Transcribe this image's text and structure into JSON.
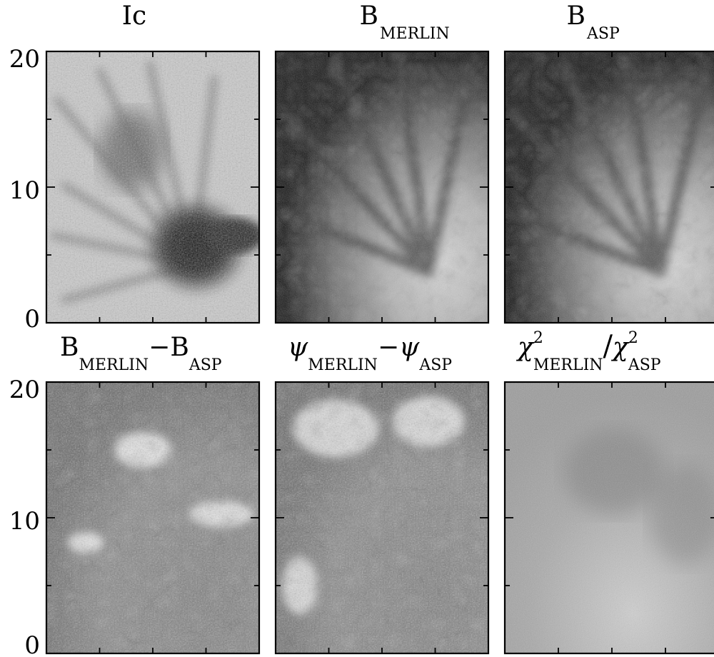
{
  "panels": [
    {
      "id": "ic",
      "title": {
        "base": "Ic"
      }
    },
    {
      "id": "b-merlin",
      "title": {
        "base": "B",
        "sub": "MERLIN"
      }
    },
    {
      "id": "b-asp",
      "title": {
        "base": "B",
        "sub": "ASP"
      }
    },
    {
      "id": "b-diff",
      "title": {
        "base1": "B",
        "sub1": "MERLIN",
        "op": "−",
        "base2": "B",
        "sub2": "ASP"
      }
    },
    {
      "id": "psi-diff",
      "title": {
        "base1": "ψ",
        "sub1": "MERLIN",
        "op": "−",
        "base2": "ψ",
        "sub2": "ASP"
      }
    },
    {
      "id": "chi-ratio",
      "title": {
        "base1": "χ",
        "sup1": "2",
        "sub1": "MERLIN",
        "op": "/",
        "base2": "χ",
        "sup2": "2",
        "sub2": "ASP"
      }
    }
  ],
  "y_axis": {
    "tick_labels": [
      "0",
      "10",
      "20"
    ],
    "range": [
      0,
      20
    ]
  }
}
